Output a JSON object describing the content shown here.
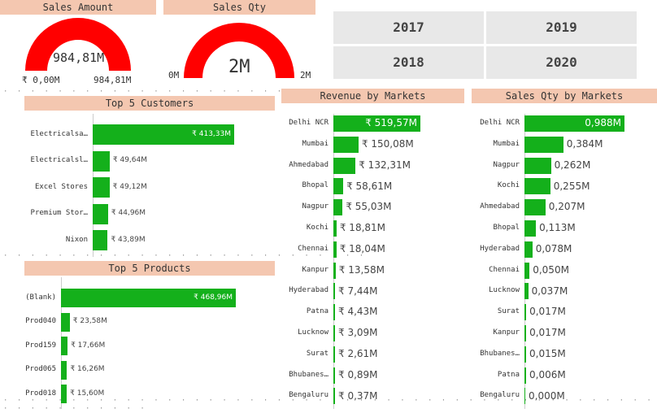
{
  "sales_amount": {
    "title": "Sales Amount",
    "value": "984,81M",
    "min": "₹ 0,00M",
    "max": "984,81M",
    "fill": 1.0
  },
  "sales_qty": {
    "title": "Sales Qty",
    "value": "2M",
    "min": "0M",
    "max": "2M",
    "fill": 1.0
  },
  "years": [
    "2017",
    "2019",
    "2018",
    "2020"
  ],
  "top_customers": {
    "title": "Top 5 Customers",
    "rows": [
      {
        "label": "Electricalsa…",
        "value": 413.33,
        "text": "₹ 413,33M"
      },
      {
        "label": "Electricalsl…",
        "value": 49.64,
        "text": "₹ 49,64M"
      },
      {
        "label": "Excel Stores",
        "value": 49.12,
        "text": "₹ 49,12M"
      },
      {
        "label": "Premium Stor…",
        "value": 44.96,
        "text": "₹ 44,96M"
      },
      {
        "label": "Nixon",
        "value": 43.89,
        "text": "₹ 43,89M"
      }
    ]
  },
  "top_products": {
    "title": "Top 5 Products",
    "rows": [
      {
        "label": "(Blank)",
        "value": 468.96,
        "text": "₹ 468,96M"
      },
      {
        "label": "Prod040",
        "value": 23.58,
        "text": "₹ 23,58M"
      },
      {
        "label": "Prod159",
        "value": 17.66,
        "text": "₹ 17,66M"
      },
      {
        "label": "Prod065",
        "value": 16.26,
        "text": "₹ 16,26M"
      },
      {
        "label": "Prod018",
        "value": 15.6,
        "text": "₹ 15,60M"
      }
    ]
  },
  "revenue_markets": {
    "title": "Revenue by Markets",
    "rows": [
      {
        "label": "Delhi NCR",
        "value": 519.57,
        "text": "₹ 519,57M"
      },
      {
        "label": "Mumbai",
        "value": 150.08,
        "text": "₹ 150,08M"
      },
      {
        "label": "Ahmedabad",
        "value": 132.31,
        "text": "₹ 132,31M"
      },
      {
        "label": "Bhopal",
        "value": 58.61,
        "text": "₹ 58,61M"
      },
      {
        "label": "Nagpur",
        "value": 55.03,
        "text": "₹ 55,03M"
      },
      {
        "label": "Kochi",
        "value": 18.81,
        "text": "₹ 18,81M"
      },
      {
        "label": "Chennai",
        "value": 18.04,
        "text": "₹ 18,04M"
      },
      {
        "label": "Kanpur",
        "value": 13.58,
        "text": "₹ 13,58M"
      },
      {
        "label": "Hyderabad",
        "value": 7.44,
        "text": "₹ 7,44M"
      },
      {
        "label": "Patna",
        "value": 4.43,
        "text": "₹ 4,43M"
      },
      {
        "label": "Lucknow",
        "value": 3.09,
        "text": "₹ 3,09M"
      },
      {
        "label": "Surat",
        "value": 2.61,
        "text": "₹ 2,61M"
      },
      {
        "label": "Bhubanes…",
        "value": 0.89,
        "text": "₹ 0,89M"
      },
      {
        "label": "Bengaluru",
        "value": 0.37,
        "text": "₹ 0,37M"
      }
    ]
  },
  "qty_markets": {
    "title": "Sales Qty by Markets",
    "rows": [
      {
        "label": "Delhi NCR",
        "value": 0.988,
        "text": "0,988M"
      },
      {
        "label": "Mumbai",
        "value": 0.384,
        "text": "0,384M"
      },
      {
        "label": "Nagpur",
        "value": 0.262,
        "text": "0,262M"
      },
      {
        "label": "Kochi",
        "value": 0.255,
        "text": "0,255M"
      },
      {
        "label": "Ahmedabad",
        "value": 0.207,
        "text": "0,207M"
      },
      {
        "label": "Bhopal",
        "value": 0.113,
        "text": "0,113M"
      },
      {
        "label": "Hyderabad",
        "value": 0.078,
        "text": "0,078M"
      },
      {
        "label": "Chennai",
        "value": 0.05,
        "text": "0,050M"
      },
      {
        "label": "Lucknow",
        "value": 0.037,
        "text": "0,037M"
      },
      {
        "label": "Surat",
        "value": 0.017,
        "text": "0,017M"
      },
      {
        "label": "Kanpur",
        "value": 0.017,
        "text": "0,017M"
      },
      {
        "label": "Bhubanes…",
        "value": 0.015,
        "text": "0,015M"
      },
      {
        "label": "Patna",
        "value": 0.006,
        "text": "0,006M"
      },
      {
        "label": "Bengaluru",
        "value": 0.0,
        "text": "0,000M"
      }
    ]
  },
  "colors": {
    "bar": "#14b01b",
    "gauge": "#ff0000",
    "header": "#f4c7b0",
    "slicer": "#e8e8e8"
  },
  "chart_data": [
    {
      "type": "bar",
      "title": "Top 5 Customers",
      "categories": [
        "Electricalsa…",
        "Electricalsl…",
        "Excel Stores",
        "Premium Stor…",
        "Nixon"
      ],
      "values": [
        413.33,
        49.64,
        49.12,
        44.96,
        43.89
      ]
    },
    {
      "type": "bar",
      "title": "Top 5 Products",
      "categories": [
        "(Blank)",
        "Prod040",
        "Prod159",
        "Prod065",
        "Prod018"
      ],
      "values": [
        468.96,
        23.58,
        17.66,
        16.26,
        15.6
      ]
    },
    {
      "type": "bar",
      "title": "Revenue by Markets",
      "categories": [
        "Delhi NCR",
        "Mumbai",
        "Ahmedabad",
        "Bhopal",
        "Nagpur",
        "Kochi",
        "Chennai",
        "Kanpur",
        "Hyderabad",
        "Patna",
        "Lucknow",
        "Surat",
        "Bhubanes…",
        "Bengaluru"
      ],
      "values": [
        519.57,
        150.08,
        132.31,
        58.61,
        55.03,
        18.81,
        18.04,
        13.58,
        7.44,
        4.43,
        3.09,
        2.61,
        0.89,
        0.37
      ]
    },
    {
      "type": "bar",
      "title": "Sales Qty by Markets",
      "categories": [
        "Delhi NCR",
        "Mumbai",
        "Nagpur",
        "Kochi",
        "Ahmedabad",
        "Bhopal",
        "Hyderabad",
        "Chennai",
        "Lucknow",
        "Surat",
        "Kanpur",
        "Bhubanes…",
        "Patna",
        "Bengaluru"
      ],
      "values": [
        0.988,
        0.384,
        0.262,
        0.255,
        0.207,
        0.113,
        0.078,
        0.05,
        0.037,
        0.017,
        0.017,
        0.015,
        0.006,
        0.0
      ]
    }
  ]
}
